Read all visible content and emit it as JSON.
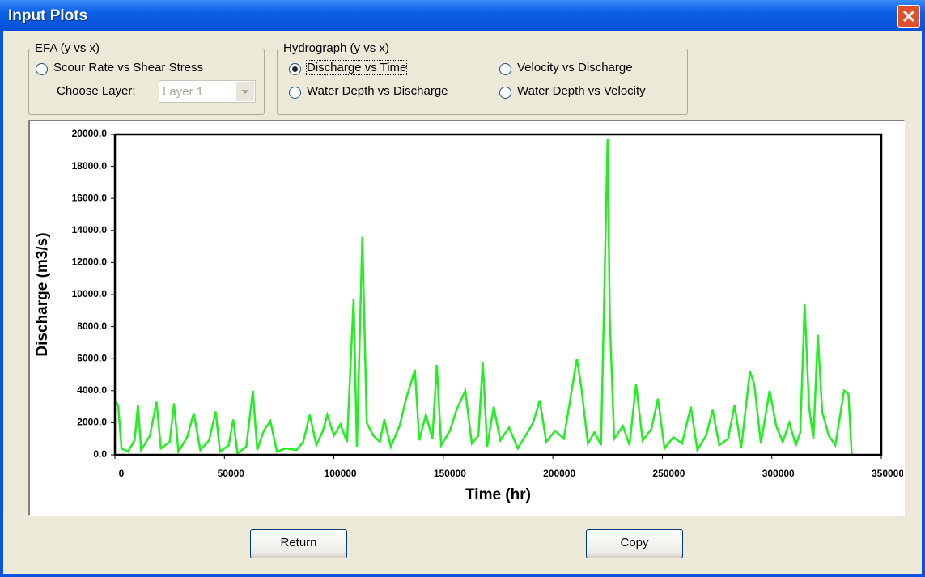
{
  "window": {
    "title": "Input Plots"
  },
  "efa_group": {
    "title": "EFA (y vs x)",
    "option": "Scour Rate vs Shear Stress",
    "layer_label": "Choose Layer:",
    "layer_value": "Layer 1"
  },
  "hydrograph_group": {
    "title": "Hydrograph (y vs x)",
    "options": [
      "Discharge vs Time",
      "Velocity vs Discharge",
      "Water Depth vs Discharge",
      "Water Depth vs Velocity"
    ],
    "selected": 0
  },
  "chart_data": {
    "type": "line",
    "xlabel": "Time (hr)",
    "ylabel": "Discharge (m3/s)",
    "color": "#22ee22",
    "x": [
      0,
      1500,
      3000,
      6000,
      9000,
      10500,
      12000,
      16000,
      19000,
      21000,
      25000,
      27000,
      29000,
      33000,
      36000,
      39000,
      43000,
      46000,
      48000,
      52000,
      54000,
      56000,
      60000,
      63000,
      65000,
      68000,
      71000,
      74000,
      78000,
      83000,
      86000,
      89000,
      92000,
      95000,
      97000,
      100000,
      103000,
      106000,
      109000,
      110500,
      113000,
      115000,
      118000,
      121000,
      123000,
      126000,
      130000,
      133000,
      137000,
      139000,
      142000,
      145000,
      147000,
      149000,
      153000,
      156000,
      160000,
      163000,
      166000,
      168000,
      170000,
      173000,
      176000,
      180000,
      184000,
      188000,
      191000,
      194000,
      197000,
      201000,
      205000,
      208000,
      211000,
      213000,
      216000,
      219000,
      222000,
      225000,
      226000,
      228000,
      232000,
      235000,
      238000,
      241000,
      245000,
      248000,
      251000,
      255000,
      259000,
      263000,
      266000,
      270000,
      273000,
      276000,
      280000,
      283000,
      286000,
      290000,
      292000,
      295000,
      299000,
      302000,
      305000,
      308000,
      311000,
      313000,
      315000,
      317000,
      319000,
      321000,
      323000,
      326000,
      329000,
      333000,
      335000,
      336500
    ],
    "values": [
      3300,
      3100,
      400,
      200,
      900,
      3100,
      300,
      1200,
      3300,
      400,
      800,
      3200,
      200,
      1100,
      2600,
      300,
      900,
      2700,
      200,
      600,
      2200,
      100,
      500,
      4000,
      300,
      1500,
      2100,
      200,
      400,
      300,
      800,
      2500,
      600,
      1500,
      2500,
      1200,
      1900,
      800,
      9700,
      500,
      13600,
      2000,
      1200,
      800,
      2200,
      500,
      1800,
      3500,
      5300,
      900,
      2500,
      1000,
      5600,
      600,
      1500,
      2800,
      4000,
      700,
      1200,
      5800,
      500,
      3000,
      900,
      1700,
      400,
      1300,
      2000,
      3400,
      800,
      1500,
      1000,
      3500,
      6000,
      4200,
      700,
      1400,
      600,
      19700,
      8500,
      1000,
      1800,
      600,
      4400,
      900,
      1600,
      3500,
      400,
      1100,
      700,
      3000,
      300,
      1200,
      2800,
      600,
      1000,
      3100,
      400,
      5200,
      4400,
      700,
      4000,
      1800,
      800,
      2000,
      600,
      1400,
      9400,
      3000,
      1000,
      7500,
      2700,
      1200,
      600,
      4000,
      3800,
      0
    ],
    "xlim": [
      0,
      350000
    ],
    "xticks": [
      0,
      50000,
      100000,
      150000,
      200000,
      250000,
      300000,
      350000
    ],
    "ylim": [
      0,
      20000
    ],
    "yticks": [
      {
        "value": 0,
        "label": "0.0"
      },
      {
        "value": 2000,
        "label": "2000.0"
      },
      {
        "value": 4000,
        "label": "4000.0"
      },
      {
        "value": 6000,
        "label": "6000.0"
      },
      {
        "value": 8000,
        "label": "8000.0"
      },
      {
        "value": 10000,
        "label": "10000.0"
      },
      {
        "value": 12000,
        "label": "12000.0"
      },
      {
        "value": 14000,
        "label": "14000.0"
      },
      {
        "value": 16000,
        "label": "16000.0"
      },
      {
        "value": 18000,
        "label": "18000.0"
      },
      {
        "value": 20000,
        "label": "20000.0"
      }
    ]
  },
  "buttons": [
    "Return",
    "Copy"
  ]
}
